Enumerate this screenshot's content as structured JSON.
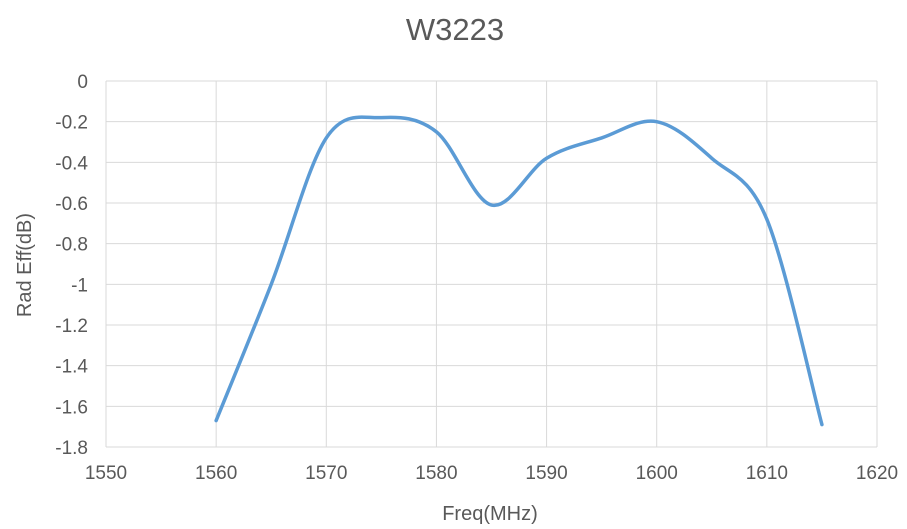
{
  "chart_data": {
    "type": "line",
    "title": "W3223",
    "xlabel": "Freq(MHz)",
    "ylabel": "Rad Eff(dB)",
    "xlim": [
      1550,
      1620
    ],
    "ylim": [
      -1.8,
      0
    ],
    "xticks": [
      1550,
      1560,
      1570,
      1580,
      1590,
      1600,
      1610,
      1620
    ],
    "yticks": [
      0,
      -0.2,
      -0.4,
      -0.6,
      -0.8,
      -1,
      -1.2,
      -1.4,
      -1.6,
      -1.8
    ],
    "xtick_labels": [
      "1550",
      "1560",
      "1570",
      "1580",
      "1590",
      "1600",
      "1610",
      "1620"
    ],
    "ytick_labels": [
      "0",
      "-0.2",
      "-0.4",
      "-0.6",
      "-0.8",
      "-1",
      "-1.2",
      "-1.4",
      "-1.6",
      "-1.8"
    ],
    "grid": true,
    "legend": "none",
    "series": [
      {
        "color": "#5B9BD5",
        "smooth": true,
        "x": [
          1560,
          1565,
          1570,
          1575,
          1580,
          1585,
          1590,
          1595,
          1600,
          1605,
          1610,
          1615
        ],
        "y": [
          -1.67,
          -1.0,
          -0.28,
          -0.18,
          -0.25,
          -0.61,
          -0.38,
          -0.28,
          -0.2,
          -0.38,
          -0.68,
          -1.69
        ]
      }
    ]
  }
}
